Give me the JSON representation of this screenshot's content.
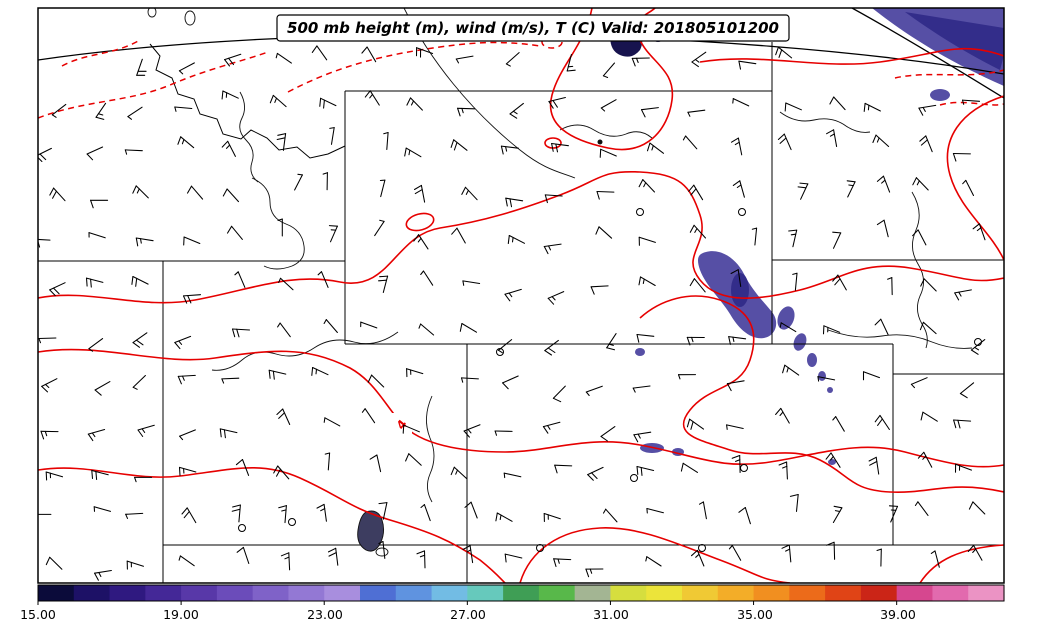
{
  "title": {
    "text": "500 mb height (m), wind (m/s), T (C) Valid: 201805101200"
  },
  "contours": {
    "label": "4"
  },
  "colorbar": {
    "min": 15,
    "max": 42,
    "step": 1,
    "ticks": [
      "15.00",
      "19.00",
      "23.00",
      "27.00",
      "31.00",
      "35.00",
      "39.00"
    ],
    "tick_values": [
      15,
      19,
      23,
      27,
      31,
      35,
      39
    ],
    "colors": [
      "#0b0b3a",
      "#1d1166",
      "#2f1980",
      "#442897",
      "#5838a8",
      "#6b4cba",
      "#7f62c8",
      "#9378d4",
      "#a88ede",
      "#4f6fd4",
      "#5f93e0",
      "#72bce4",
      "#66c9bc",
      "#3f9e55",
      "#58b84a",
      "#a3b593",
      "#d6de3e",
      "#ece43a",
      "#f0c934",
      "#f3ad28",
      "#f18f20",
      "#ec6b1a",
      "#e04416",
      "#cb2517",
      "#d6478f",
      "#e26aae",
      "#eb93c4"
    ]
  },
  "colors": {
    "contour_red": "#e60000",
    "shade_main": "#564fa5",
    "shade_dark": "#332d8a",
    "shade_navy": "#17134e",
    "state_line": "#000000",
    "background": "#ffffff"
  },
  "chart_data": {
    "type": "contour-map",
    "title": "500 mb height (m), wind (m/s), T (C) Valid: 201805101200",
    "level_label": "500 mb",
    "valid_label": "201805101200",
    "fields": [
      {
        "field": "height",
        "units": "m"
      },
      {
        "field": "wind",
        "units": "m/s",
        "symbol": "barbs",
        "calm_circle_count": 10
      },
      {
        "field": "T",
        "units": "C",
        "style": "red contours, solid and dashed",
        "visible_contour_labels": [
          "4"
        ]
      }
    ],
    "colorbar": {
      "orientation": "horizontal",
      "min": 15,
      "max": 42,
      "step": 1,
      "tick_labels": [
        "15.00",
        "19.00",
        "23.00",
        "27.00",
        "31.00",
        "35.00",
        "39.00"
      ]
    },
    "shaded_regions": "purple filled patches: large area in top-right corner, dark navy blobs top-center, elongated cluster center-right, small spots in Colorado",
    "region": "Northern and Central Rockies / High Plains (ID, MT, WY, UT, CO, ND, SD, NE, KS)"
  }
}
